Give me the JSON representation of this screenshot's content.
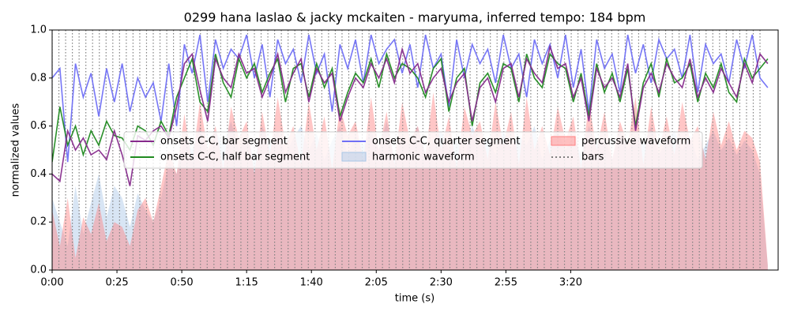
{
  "chart_data": {
    "type": "line",
    "title": "0299 hana laslao & jacky mckaiten - maryuma, inferred tempo: 184 bpm",
    "xlabel": "time (s)",
    "ylabel": "normalized values",
    "xlim": [
      0,
      280
    ],
    "ylim": [
      0,
      1
    ],
    "xticks": [
      {
        "value": 0,
        "label": "0:00"
      },
      {
        "value": 25,
        "label": "0:25"
      },
      {
        "value": 50,
        "label": "0:50"
      },
      {
        "value": 75,
        "label": "1:15"
      },
      {
        "value": 100,
        "label": "1:40"
      },
      {
        "value": 125,
        "label": "2:05"
      },
      {
        "value": 150,
        "label": "2:30"
      },
      {
        "value": 175,
        "label": "2:55"
      },
      {
        "value": 200,
        "label": "3:20"
      }
    ],
    "yticks": [
      {
        "value": 0,
        "label": "0.0"
      },
      {
        "value": 0.2,
        "label": "0.2"
      },
      {
        "value": 0.4,
        "label": "0.4"
      },
      {
        "value": 0.6,
        "label": "0.6"
      },
      {
        "value": 0.8,
        "label": "0.8"
      },
      {
        "value": 1,
        "label": "1.0"
      }
    ],
    "legend": "center",
    "x": [
      0,
      3,
      6,
      9,
      12,
      15,
      18,
      21,
      24,
      27,
      30,
      33,
      36,
      39,
      42,
      45,
      48,
      51,
      54,
      57,
      60,
      63,
      66,
      69,
      72,
      75,
      78,
      81,
      84,
      87,
      90,
      93,
      96,
      99,
      102,
      105,
      108,
      111,
      114,
      117,
      120,
      123,
      126,
      129,
      132,
      135,
      138,
      141,
      144,
      147,
      150,
      153,
      156,
      159,
      162,
      165,
      168,
      171,
      174,
      177,
      180,
      183,
      186,
      189,
      192,
      195,
      198,
      201,
      204,
      207,
      210,
      213,
      216,
      219,
      222,
      225,
      228,
      231,
      234,
      237,
      240,
      243,
      246,
      249,
      252,
      255,
      258,
      261,
      264,
      267,
      270,
      273,
      276
    ],
    "series": [
      {
        "name": "onsets C-C, bar segment",
        "kind": "line",
        "color": "#862a8c",
        "values": [
          0.4,
          0.37,
          0.58,
          0.5,
          0.55,
          0.48,
          0.5,
          0.46,
          0.58,
          0.48,
          0.35,
          0.56,
          0.54,
          0.58,
          0.6,
          0.55,
          0.68,
          0.86,
          0.9,
          0.75,
          0.62,
          0.88,
          0.8,
          0.76,
          0.9,
          0.82,
          0.84,
          0.72,
          0.8,
          0.9,
          0.74,
          0.82,
          0.88,
          0.7,
          0.84,
          0.78,
          0.82,
          0.62,
          0.72,
          0.8,
          0.76,
          0.86,
          0.8,
          0.88,
          0.78,
          0.92,
          0.82,
          0.86,
          0.74,
          0.8,
          0.84,
          0.7,
          0.78,
          0.82,
          0.62,
          0.76,
          0.8,
          0.7,
          0.84,
          0.86,
          0.72,
          0.88,
          0.82,
          0.78,
          0.93,
          0.84,
          0.86,
          0.72,
          0.8,
          0.62,
          0.84,
          0.76,
          0.8,
          0.72,
          0.86,
          0.58,
          0.76,
          0.82,
          0.74,
          0.86,
          0.8,
          0.76,
          0.88,
          0.72,
          0.8,
          0.74,
          0.84,
          0.78,
          0.72,
          0.86,
          0.78,
          0.9,
          0.86
        ]
      },
      {
        "name": "onsets C-C, half bar segment",
        "kind": "line",
        "color": "#1f8a1f",
        "values": [
          0.45,
          0.68,
          0.52,
          0.6,
          0.48,
          0.58,
          0.52,
          0.62,
          0.56,
          0.55,
          0.5,
          0.6,
          0.58,
          0.52,
          0.62,
          0.56,
          0.72,
          0.8,
          0.88,
          0.7,
          0.66,
          0.9,
          0.78,
          0.72,
          0.88,
          0.8,
          0.86,
          0.74,
          0.82,
          0.88,
          0.7,
          0.84,
          0.86,
          0.72,
          0.86,
          0.76,
          0.84,
          0.64,
          0.74,
          0.82,
          0.78,
          0.88,
          0.76,
          0.9,
          0.8,
          0.86,
          0.84,
          0.8,
          0.72,
          0.84,
          0.88,
          0.66,
          0.8,
          0.84,
          0.6,
          0.78,
          0.82,
          0.74,
          0.86,
          0.84,
          0.7,
          0.9,
          0.8,
          0.76,
          0.9,
          0.86,
          0.84,
          0.7,
          0.82,
          0.64,
          0.86,
          0.74,
          0.82,
          0.7,
          0.84,
          0.6,
          0.78,
          0.86,
          0.72,
          0.88,
          0.78,
          0.8,
          0.86,
          0.7,
          0.82,
          0.76,
          0.86,
          0.74,
          0.7,
          0.88,
          0.8,
          0.84,
          0.88
        ]
      },
      {
        "name": "onsets C-C, quarter segment",
        "kind": "line",
        "color": "#6f6ff5",
        "values": [
          0.8,
          0.84,
          0.45,
          0.86,
          0.72,
          0.82,
          0.64,
          0.84,
          0.7,
          0.86,
          0.66,
          0.8,
          0.72,
          0.78,
          0.62,
          0.86,
          0.6,
          0.94,
          0.82,
          0.98,
          0.7,
          0.96,
          0.84,
          0.92,
          0.88,
          0.98,
          0.8,
          0.94,
          0.72,
          0.96,
          0.86,
          0.92,
          0.78,
          0.98,
          0.82,
          0.9,
          0.66,
          0.94,
          0.84,
          0.96,
          0.78,
          0.98,
          0.86,
          0.92,
          0.96,
          0.82,
          0.94,
          0.76,
          0.98,
          0.84,
          0.9,
          0.68,
          0.96,
          0.8,
          0.94,
          0.86,
          0.92,
          0.78,
          0.98,
          0.84,
          0.9,
          0.72,
          0.96,
          0.86,
          0.94,
          0.8,
          0.98,
          0.76,
          0.92,
          0.66,
          0.96,
          0.84,
          0.9,
          0.74,
          0.98,
          0.82,
          0.94,
          0.78,
          0.96,
          0.88,
          0.92,
          0.8,
          0.98,
          0.74,
          0.94,
          0.86,
          0.9,
          0.78,
          0.96,
          0.84,
          0.98,
          0.8,
          0.76
        ]
      },
      {
        "name": "harmonic waveform",
        "kind": "area",
        "color": "#a9c6e6",
        "values": [
          0.3,
          0.2,
          0.1,
          0.35,
          0.15,
          0.28,
          0.4,
          0.22,
          0.35,
          0.3,
          0.18,
          0.32,
          0.25,
          0.2,
          0.3,
          0.45,
          0.4,
          0.55,
          0.5,
          0.6,
          0.48,
          0.58,
          0.52,
          0.62,
          0.5,
          0.56,
          0.46,
          0.6,
          0.52,
          0.58,
          0.48,
          0.55,
          0.6,
          0.5,
          0.57,
          0.46,
          0.54,
          0.6,
          0.48,
          0.56,
          0.52,
          0.58,
          0.5,
          0.62,
          0.46,
          0.56,
          0.52,
          0.6,
          0.48,
          0.54,
          0.58,
          0.5,
          0.56,
          0.46,
          0.6,
          0.52,
          0.55,
          0.48,
          0.58,
          0.5,
          0.56,
          0.52,
          0.6,
          0.46,
          0.54,
          0.58,
          0.5,
          0.56,
          0.48,
          0.6,
          0.52,
          0.55,
          0.46,
          0.58,
          0.5,
          0.56,
          0.52,
          0.6,
          0.48,
          0.54,
          0.58,
          0.5,
          0.56,
          0.46,
          0.52,
          0.58,
          0.5,
          0.55,
          0.48,
          0.54,
          0.5,
          0.4,
          0.02
        ]
      },
      {
        "name": "percussive waveform",
        "kind": "area",
        "color": "#ff8080",
        "values": [
          0.25,
          0.1,
          0.3,
          0.05,
          0.22,
          0.15,
          0.28,
          0.12,
          0.2,
          0.18,
          0.1,
          0.25,
          0.3,
          0.2,
          0.35,
          0.5,
          0.4,
          0.65,
          0.45,
          0.7,
          0.5,
          0.6,
          0.42,
          0.68,
          0.55,
          0.62,
          0.4,
          0.66,
          0.48,
          0.72,
          0.52,
          0.6,
          0.44,
          0.7,
          0.5,
          0.64,
          0.42,
          0.68,
          0.56,
          0.62,
          0.46,
          0.72,
          0.5,
          0.66,
          0.44,
          0.7,
          0.54,
          0.6,
          0.48,
          0.74,
          0.5,
          0.64,
          0.42,
          0.68,
          0.56,
          0.62,
          0.46,
          0.7,
          0.52,
          0.66,
          0.44,
          0.72,
          0.5,
          0.6,
          0.48,
          0.68,
          0.54,
          0.64,
          0.42,
          0.7,
          0.5,
          0.66,
          0.46,
          0.62,
          0.52,
          0.72,
          0.44,
          0.68,
          0.5,
          0.64,
          0.48,
          0.7,
          0.54,
          0.6,
          0.46,
          0.66,
          0.52,
          0.62,
          0.5,
          0.58,
          0.55,
          0.45,
          0.02
        ]
      },
      {
        "name": "bars",
        "kind": "vlines",
        "color": "#808080",
        "x": [
          0,
          2.6,
          5.2,
          7.8,
          10.4,
          13,
          15.6,
          18.2,
          20.8,
          23.4,
          26,
          28.6,
          31.2,
          33.8,
          36.4,
          39,
          41.6,
          44.2,
          46.8,
          49.4,
          52,
          54.6,
          57.2,
          59.8,
          62.4,
          65,
          67.6,
          70.2,
          72.8,
          75.4,
          78,
          80.6,
          83.2,
          85.8,
          88.4,
          91,
          93.6,
          96.2,
          98.8,
          101.4,
          104,
          106.6,
          109.2,
          111.8,
          114.4,
          117,
          119.6,
          122.2,
          124.8,
          127.4,
          130,
          132.6,
          135.2,
          137.8,
          140.4,
          143,
          145.6,
          148.2,
          150.8,
          153.4,
          156,
          158.6,
          161.2,
          163.8,
          166.4,
          169,
          171.6,
          174.2,
          176.8,
          179.4,
          182,
          184.6,
          187.2,
          189.8,
          192.4,
          195,
          197.6,
          200.2,
          202.8,
          205.4,
          208,
          210.6,
          213.2,
          215.8,
          218.4,
          221,
          223.6,
          226.2,
          228.8,
          231.4,
          234,
          236.6,
          239.2,
          241.8,
          244.4,
          247,
          249.6,
          252.2,
          254.8,
          257.4,
          260,
          262.6,
          265.2,
          267.8,
          270.4,
          273
        ]
      }
    ]
  }
}
